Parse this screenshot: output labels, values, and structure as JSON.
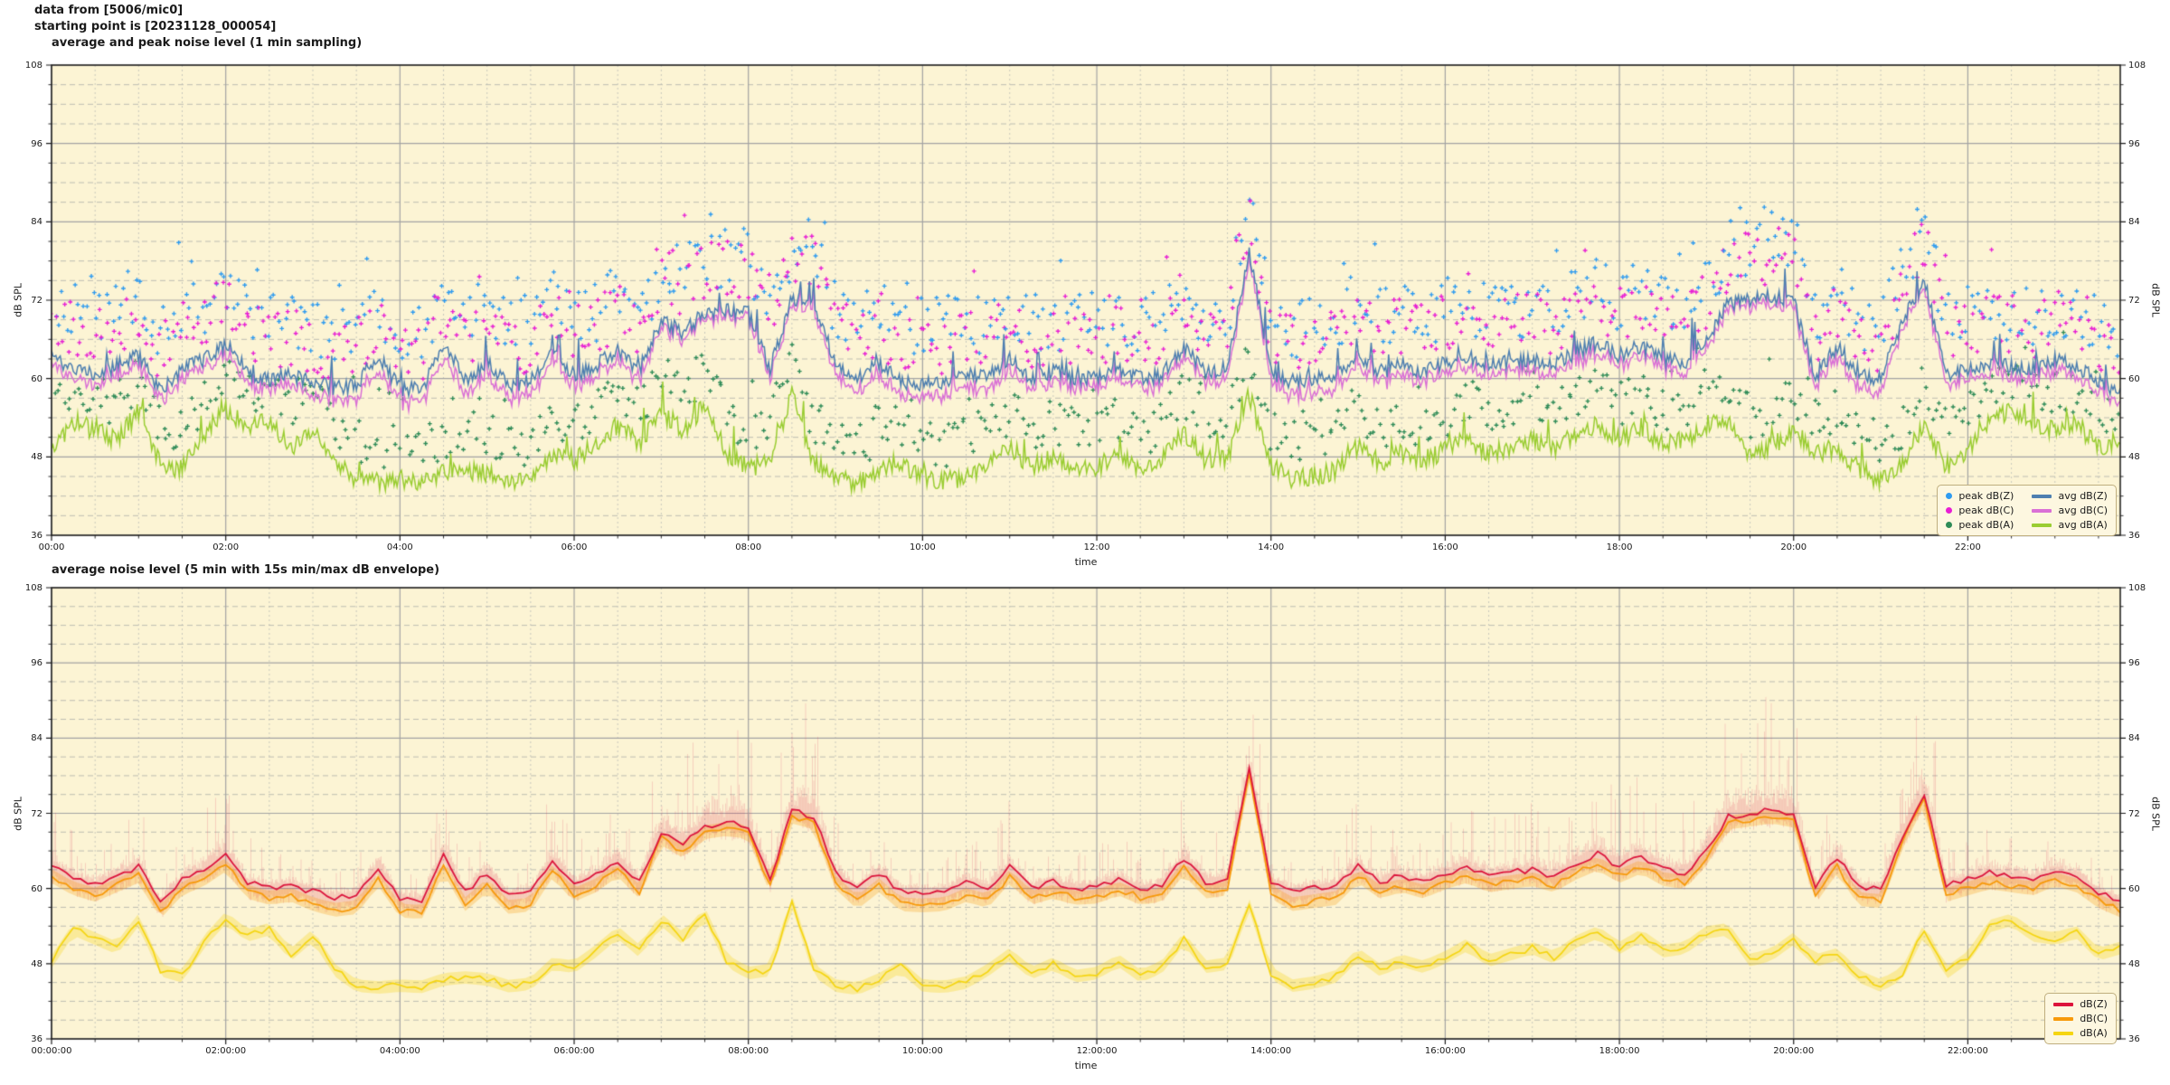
{
  "header": {
    "line1": "data from [5006/mic0]",
    "line2": "starting point is [20231128_000054]"
  },
  "style": {
    "figure_bg": "#ffffff",
    "plot_bg": "#fcf4d4",
    "major_grid": "#a3a3a3",
    "minor_grid": "#bdbdb2",
    "spine": "#1a1a1a",
    "legend_bg": "#fdf7e0",
    "legend_border": "#bfae7e"
  },
  "chart_data": [
    {
      "type": "line+scatter",
      "title": "average and peak noise level (1 min sampling)",
      "xlabel": "time",
      "ylabel_left": "dB SPL",
      "ylabel_right": "dB SPL",
      "ylim": [
        36,
        108
      ],
      "x_range_hours": [
        0,
        23.75
      ],
      "yticks": {
        "values": [
          36,
          48,
          60,
          72,
          84,
          96,
          108
        ],
        "labels": [
          "36",
          "48",
          "60",
          "72",
          "84",
          "96",
          "108"
        ]
      },
      "xticks": {
        "hours": [
          0,
          2,
          4,
          6,
          8,
          10,
          12,
          14,
          16,
          18,
          20,
          22
        ],
        "labels": [
          "00:00",
          "02:00",
          "04:00",
          "06:00",
          "08:00",
          "10:00",
          "12:00",
          "14:00",
          "16:00",
          "18:00",
          "20:00",
          "22:00"
        ]
      },
      "grid": {
        "major": true,
        "minor_y_step_db": 3,
        "minor_x_step_hour": 0.5
      },
      "legend_position": "lower right",
      "series_x_step_hour": 0.25,
      "series": [
        {
          "name": "avg dB(Z)",
          "style": "line",
          "color": "#4e7fb0",
          "values": [
            63.5,
            61.5,
            60.5,
            62.0,
            63.5,
            57.8,
            61.5,
            63.0,
            65.3,
            61.0,
            60.0,
            60.5,
            59.5,
            58.6,
            59.0,
            63.5,
            58.5,
            58.2,
            65.5,
            59.5,
            62.5,
            59.0,
            59.5,
            64.5,
            60.5,
            62.0,
            64.5,
            61.0,
            69.0,
            67.0,
            70.0,
            70.5,
            70.0,
            61.5,
            72.5,
            71.5,
            62.5,
            59.8,
            62.5,
            59.5,
            59.3,
            59.5,
            61.0,
            60.0,
            63.5,
            60.0,
            61.0,
            60.0,
            60.2,
            61.5,
            60.0,
            60.5,
            64.8,
            61.0,
            61.5,
            79.5,
            61.0,
            59.5,
            60.0,
            60.5,
            63.5,
            61.0,
            62.0,
            61.0,
            62.5,
            63.5,
            62.0,
            62.5,
            63.0,
            62.0,
            64.0,
            65.5,
            63.5,
            65.0,
            63.0,
            62.5,
            66.0,
            71.5,
            72.0,
            72.5,
            71.8,
            60.2,
            65.0,
            60.3,
            60.0,
            68.5,
            75.3,
            60.5,
            61.5,
            62.5,
            62.0,
            61.5,
            63.0,
            62.0,
            59.5,
            58.0
          ]
        },
        {
          "name": "avg dB(C)",
          "style": "line",
          "color": "#da70d6",
          "values": [
            62.0,
            60.0,
            59.0,
            60.5,
            62.0,
            56.3,
            60.0,
            61.5,
            63.8,
            59.5,
            58.5,
            59.0,
            57.5,
            56.6,
            57.0,
            61.5,
            56.5,
            56.2,
            63.5,
            57.5,
            60.5,
            57.0,
            57.5,
            62.8,
            59.0,
            60.5,
            63.0,
            59.5,
            68.0,
            66.0,
            69.0,
            69.5,
            69.0,
            60.3,
            71.5,
            70.5,
            61.0,
            57.8,
            60.5,
            57.5,
            57.3,
            57.5,
            59.0,
            58.0,
            62.0,
            58.5,
            59.5,
            58.5,
            58.7,
            60.0,
            58.5,
            59.0,
            63.3,
            59.5,
            60.0,
            78.5,
            59.5,
            57.5,
            58.0,
            58.5,
            62.0,
            59.5,
            60.5,
            59.5,
            61.0,
            62.0,
            60.5,
            61.0,
            61.5,
            60.5,
            62.5,
            64.0,
            62.0,
            63.5,
            61.5,
            61.0,
            64.8,
            70.5,
            71.0,
            71.5,
            70.8,
            58.7,
            63.5,
            58.3,
            58.0,
            67.5,
            74.3,
            59.0,
            60.0,
            61.0,
            60.5,
            60.0,
            61.5,
            60.5,
            58.0,
            56.5
          ]
        },
        {
          "name": "avg dB(A)",
          "style": "line",
          "color": "#9acd32",
          "values": [
            48.3,
            53.5,
            52.0,
            50.5,
            55.0,
            47.0,
            46.0,
            51.5,
            55.3,
            52.5,
            53.5,
            49.5,
            52.5,
            47.0,
            44.5,
            44.2,
            44.5,
            44.3,
            45.5,
            45.8,
            45.5,
            44.4,
            44.8,
            48.0,
            47.5,
            50.0,
            53.0,
            50.0,
            55.0,
            52.0,
            56.0,
            48.5,
            46.5,
            47.0,
            58.0,
            47.0,
            44.5,
            44.0,
            45.5,
            47.5,
            44.5,
            44.3,
            45.0,
            47.0,
            49.5,
            46.5,
            48.0,
            46.0,
            46.5,
            48.5,
            46.0,
            47.5,
            52.0,
            47.5,
            48.0,
            57.5,
            46.5,
            44.5,
            45.0,
            46.0,
            49.5,
            47.0,
            48.5,
            47.5,
            49.0,
            51.0,
            48.5,
            49.5,
            50.5,
            49.0,
            51.5,
            53.0,
            50.5,
            52.5,
            50.0,
            50.5,
            53.0,
            53.5,
            48.5,
            49.5,
            52.0,
            48.5,
            49.5,
            46.0,
            44.5,
            46.5,
            53.5,
            46.5,
            49.0,
            54.0,
            55.0,
            52.5,
            52.0,
            53.0,
            49.5,
            50.5
          ]
        },
        {
          "name": "peak dB(Z)",
          "style": "scatter",
          "color": "#2e9bf0",
          "base": "avg dB(Z)",
          "offset_db": [
            3.5,
            13
          ],
          "rare_extra_db": 8
        },
        {
          "name": "peak dB(C)",
          "style": "scatter",
          "color": "#e81ed4",
          "base": "avg dB(C)",
          "offset_db": [
            3,
            12
          ],
          "rare_extra_db": 9
        },
        {
          "name": "peak dB(A)",
          "style": "scatter",
          "color": "#2e8b57",
          "base": "avg dB(A)",
          "offset_db": [
            2,
            9
          ],
          "rare_extra_db": 7
        }
      ],
      "legend": {
        "entries": [
          {
            "label": "peak dB(Z)",
            "swatch": "dot",
            "color": "#2e9bf0"
          },
          {
            "label": "peak dB(C)",
            "swatch": "dot",
            "color": "#e81ed4"
          },
          {
            "label": "peak dB(A)",
            "swatch": "dot",
            "color": "#2e8b57"
          },
          {
            "label": "avg dB(Z)",
            "swatch": "line",
            "color": "#4e7fb0"
          },
          {
            "label": "avg dB(C)",
            "swatch": "line",
            "color": "#da70d6"
          },
          {
            "label": "avg dB(A)",
            "swatch": "line",
            "color": "#9acd32"
          }
        ]
      },
      "render_hints": {
        "points_per_hour": 60,
        "line_jitter_db": 1.2,
        "spike_prob": 0.045,
        "spike_max_db": 4.8,
        "scatter_step_min": 2.2
      }
    },
    {
      "type": "line+envelope",
      "title": "average noise level (5 min with 15s min/max dB envelope)",
      "xlabel": "time",
      "ylabel_left": "dB SPL",
      "ylabel_right": "dB SPL",
      "ylim": [
        36,
        108
      ],
      "x_range_hours": [
        0,
        23.75
      ],
      "yticks": {
        "values": [
          36,
          48,
          60,
          72,
          84,
          96,
          108
        ],
        "labels": [
          "36",
          "48",
          "60",
          "72",
          "84",
          "96",
          "108"
        ]
      },
      "xticks": {
        "hours": [
          0,
          2,
          4,
          6,
          8,
          10,
          12,
          14,
          16,
          18,
          20,
          22
        ],
        "labels": [
          "00:00:00",
          "02:00:00",
          "04:00:00",
          "06:00:00",
          "08:00:00",
          "10:00:00",
          "12:00:00",
          "14:00:00",
          "16:00:00",
          "18:00:00",
          "20:00:00",
          "22:00:00"
        ]
      },
      "grid": {
        "major": true,
        "minor_y_step_db": 3,
        "minor_x_step_hour": 0.5
      },
      "legend_position": "lower right",
      "series_x_step_hour": 0.25,
      "series": [
        {
          "name": "dB(Z)",
          "style": "line",
          "color": "#dc143c",
          "envelope": {
            "type": "min/max 15s",
            "color": "#dc143c",
            "alpha": 0.16,
            "min_below_db": 2.8,
            "max_above_db": 21
          },
          "values": [
            63.5,
            61.5,
            60.5,
            62.0,
            63.5,
            57.8,
            61.5,
            63.0,
            65.3,
            61.0,
            60.0,
            60.5,
            59.5,
            58.6,
            59.0,
            63.5,
            58.5,
            58.2,
            65.5,
            59.5,
            62.5,
            59.0,
            59.5,
            64.5,
            60.5,
            62.0,
            64.5,
            61.0,
            69.0,
            67.0,
            70.0,
            70.5,
            70.0,
            61.5,
            72.5,
            71.5,
            62.5,
            59.8,
            62.5,
            59.5,
            59.3,
            59.5,
            61.0,
            60.0,
            63.5,
            60.0,
            61.0,
            60.0,
            60.2,
            61.5,
            60.0,
            60.5,
            64.8,
            61.0,
            61.5,
            79.5,
            61.0,
            59.5,
            60.0,
            60.5,
            63.5,
            61.0,
            62.0,
            61.0,
            62.5,
            63.5,
            62.0,
            62.5,
            63.0,
            62.0,
            64.0,
            65.5,
            63.5,
            65.0,
            63.0,
            62.5,
            66.0,
            71.5,
            72.0,
            72.5,
            71.8,
            60.2,
            65.0,
            60.3,
            60.0,
            68.5,
            75.3,
            60.5,
            61.5,
            62.5,
            62.0,
            61.5,
            63.0,
            62.0,
            59.5,
            58.0
          ]
        },
        {
          "name": "dB(C)",
          "style": "line",
          "color": "#f79a0b",
          "envelope": {
            "type": "min/max 15s",
            "color": "#f79a0b",
            "alpha": 0.28,
            "min_below_db": 1.1,
            "max_above_db": 1.1
          },
          "values": [
            62.0,
            60.0,
            59.0,
            60.5,
            62.0,
            56.3,
            60.0,
            61.5,
            63.8,
            59.5,
            58.5,
            59.0,
            57.5,
            56.6,
            57.0,
            61.5,
            56.5,
            56.2,
            63.5,
            57.5,
            60.5,
            57.0,
            57.5,
            62.8,
            59.0,
            60.5,
            63.0,
            59.5,
            68.0,
            66.0,
            69.0,
            69.5,
            69.0,
            60.3,
            71.5,
            70.5,
            61.0,
            57.8,
            60.5,
            57.5,
            57.3,
            57.5,
            59.0,
            58.0,
            62.0,
            58.5,
            59.5,
            58.5,
            58.7,
            60.0,
            58.5,
            59.0,
            63.3,
            59.5,
            60.0,
            78.5,
            59.5,
            57.5,
            58.0,
            58.5,
            62.0,
            59.5,
            60.5,
            59.5,
            61.0,
            62.0,
            60.5,
            61.0,
            61.5,
            60.5,
            62.5,
            64.0,
            62.0,
            63.5,
            61.5,
            61.0,
            64.8,
            70.5,
            71.0,
            71.5,
            70.8,
            58.7,
            63.5,
            58.3,
            58.0,
            67.5,
            74.3,
            59.0,
            60.0,
            61.0,
            60.5,
            60.0,
            61.5,
            60.5,
            58.0,
            56.5
          ]
        },
        {
          "name": "dB(A)",
          "style": "line",
          "color": "#f5d511",
          "envelope": {
            "type": "min/max 15s",
            "color": "#f5d511",
            "alpha": 0.3,
            "min_below_db": 1.0,
            "max_above_db": 1.0
          },
          "values": [
            48.3,
            53.5,
            52.0,
            50.5,
            55.0,
            47.0,
            46.0,
            51.5,
            55.3,
            52.5,
            53.5,
            49.5,
            52.5,
            47.0,
            44.5,
            44.2,
            44.5,
            44.3,
            45.5,
            45.8,
            45.5,
            44.4,
            44.8,
            48.0,
            47.5,
            50.0,
            53.0,
            50.0,
            55.0,
            52.0,
            56.0,
            48.5,
            46.5,
            47.0,
            58.0,
            47.0,
            44.5,
            44.0,
            45.5,
            47.5,
            44.5,
            44.3,
            45.0,
            47.0,
            49.5,
            46.5,
            48.0,
            46.0,
            46.5,
            48.5,
            46.0,
            47.5,
            52.0,
            47.5,
            48.0,
            57.5,
            46.5,
            44.5,
            45.0,
            46.0,
            49.5,
            47.0,
            48.5,
            47.5,
            49.0,
            51.0,
            48.5,
            49.5,
            50.5,
            49.0,
            51.5,
            53.0,
            50.5,
            52.5,
            50.0,
            50.5,
            53.0,
            53.5,
            48.5,
            49.5,
            52.0,
            48.5,
            49.5,
            46.0,
            44.5,
            46.5,
            53.5,
            46.5,
            49.0,
            54.0,
            55.0,
            52.5,
            52.0,
            53.0,
            49.5,
            50.5
          ]
        }
      ],
      "legend": {
        "entries": [
          {
            "label": "dB(Z)",
            "swatch": "line",
            "color": "#dc143c"
          },
          {
            "label": "dB(C)",
            "swatch": "line",
            "color": "#f79a0b"
          },
          {
            "label": "dB(A)",
            "swatch": "line",
            "color": "#f5d511"
          }
        ]
      },
      "render_hints": {
        "points_per_hour": 12,
        "line_jitter_db": 0.5
      }
    }
  ]
}
